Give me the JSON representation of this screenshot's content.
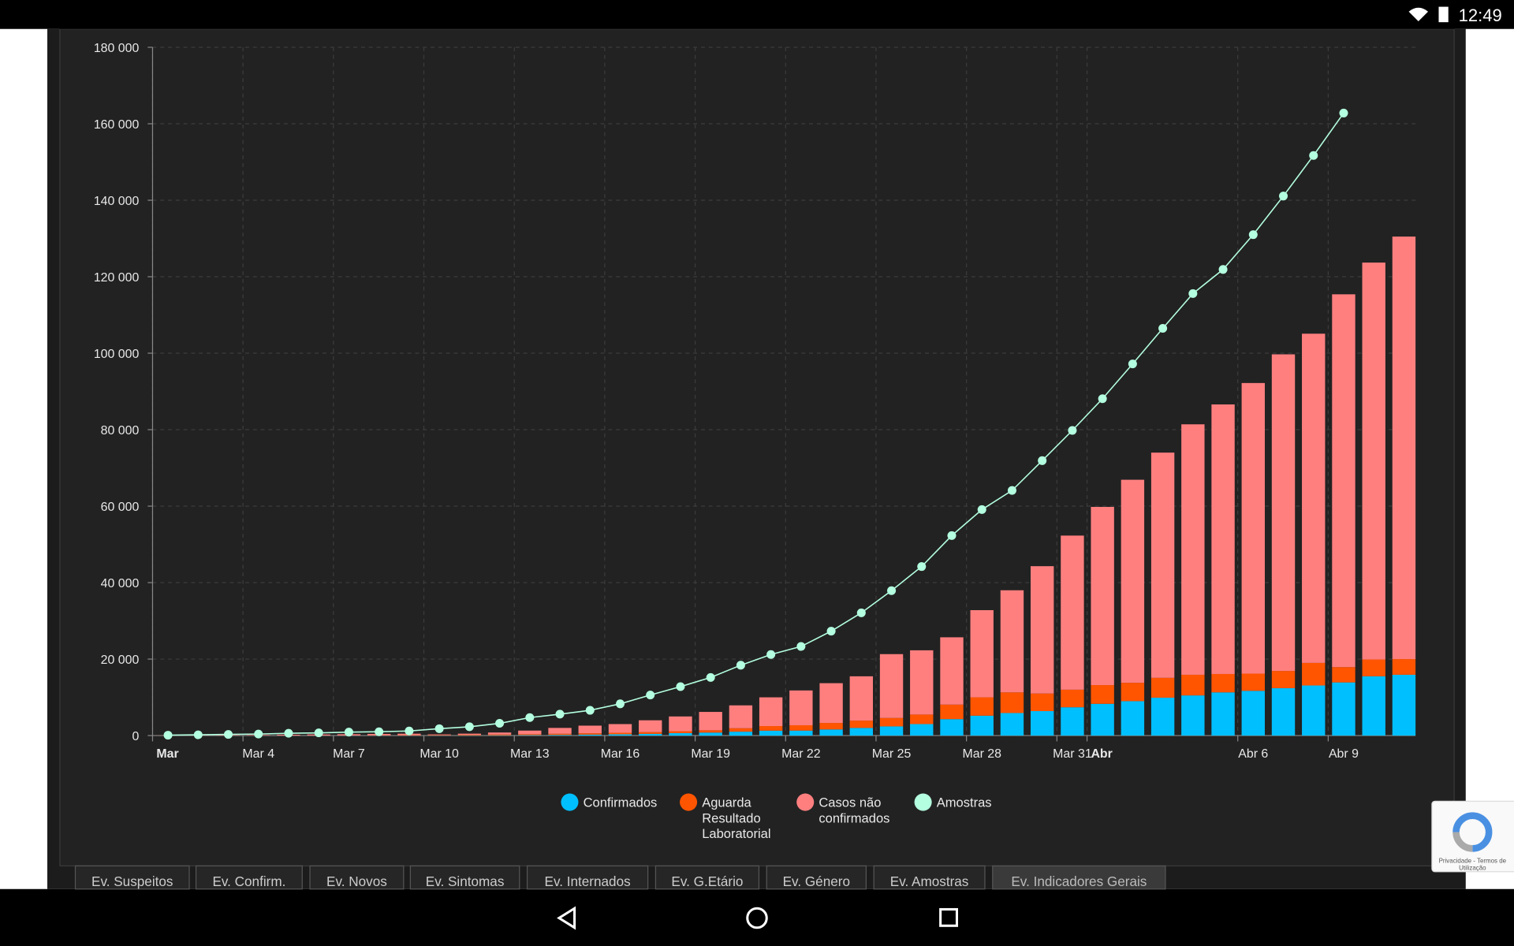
{
  "status_bar": {
    "time": "12:49"
  },
  "chart_data": {
    "type": "bar",
    "stacked": true,
    "categories": [
      "Mar",
      null,
      null,
      "Mar 4",
      null,
      null,
      "Mar 7",
      null,
      null,
      "Mar 10",
      null,
      null,
      "Mar 13",
      null,
      null,
      "Mar 16",
      null,
      null,
      "Mar 19",
      null,
      null,
      "Mar 22",
      null,
      null,
      "Mar 25",
      null,
      null,
      "Mar 28",
      null,
      null,
      "Mar 31",
      "Abr",
      null,
      null,
      null,
      null,
      "Abr 6",
      null,
      null,
      "Abr 9",
      null,
      null
    ],
    "series": [
      {
        "name": "Confirmados",
        "color": "#00bfff",
        "values": [
          0,
          0,
          2,
          4,
          5,
          8,
          13,
          21,
          30,
          41,
          59,
          78,
          112,
          169,
          245,
          331,
          448,
          642,
          785,
          1020,
          1280,
          1300,
          1600,
          2000,
          2400,
          3000,
          4300,
          5200,
          5900,
          6400,
          7400,
          8300,
          9000,
          9900,
          10500,
          11300,
          11700,
          12400,
          13100,
          13900,
          15500,
          15900
        ]
      },
      {
        "name": "Aguarda Resultado Laboratorial",
        "color": "#ff5500",
        "values": [
          0,
          0,
          5,
          10,
          20,
          30,
          40,
          60,
          80,
          100,
          150,
          200,
          250,
          300,
          350,
          400,
          450,
          500,
          600,
          900,
          1200,
          1400,
          1700,
          1900,
          2200,
          2500,
          3800,
          4800,
          5400,
          4600,
          4600,
          4900,
          4800,
          5200,
          5400,
          4800,
          4500,
          4500,
          5900,
          4000,
          4400,
          4100
        ]
      },
      {
        "name": "Casos não confirmados",
        "color": "#ff7f7f",
        "values": [
          30,
          60,
          90,
          120,
          200,
          250,
          300,
          350,
          380,
          160,
          290,
          520,
          940,
          1530,
          2000,
          2270,
          3100,
          3860,
          4800,
          5980,
          7520,
          9100,
          10400,
          11600,
          16700,
          16800,
          17600,
          22800,
          26700,
          33300,
          40300,
          46600,
          53100,
          58900,
          65500,
          70500,
          76000,
          82800,
          86100,
          97500,
          103800,
          110500
        ]
      },
      {
        "name": "Amostras",
        "color": "#b3ffe0",
        "type": "line",
        "values": [
          100,
          200,
          300,
          400,
          600,
          700,
          900,
          1000,
          1200,
          1800,
          2300,
          3200,
          4700,
          5600,
          6600,
          8300,
          10600,
          12800,
          15200,
          18400,
          21200,
          23300,
          27300,
          32100,
          37900,
          44200,
          52300,
          59100,
          64100,
          71900,
          79800,
          88100,
          97200,
          106500,
          115600,
          121900,
          131000,
          141100,
          151700,
          162800,
          null,
          null
        ]
      }
    ],
    "ylim": [
      0,
      180000
    ],
    "yticks": [
      0,
      {
        "value": 20000,
        "label": "20 000"
      },
      {
        "value": 40000,
        "label": "40 000"
      },
      {
        "value": 60000,
        "label": "60 000"
      },
      {
        "value": 80000,
        "label": "80 000"
      },
      {
        "value": 100000,
        "label": "100 000"
      },
      {
        "value": 120000,
        "label": "120 000"
      },
      {
        "value": 140000,
        "label": "140 000"
      },
      {
        "value": 160000,
        "label": "160 000"
      },
      {
        "value": 180000,
        "label": "180 000"
      }
    ],
    "grid": true,
    "legend": "bottom"
  },
  "tabs": [
    "Ev. Suspeitos",
    "Ev. Confirm.",
    "Ev. Novos",
    "Ev. Sintomas",
    "Ev. Internados",
    "Ev. G.Etário",
    "Ev. Género",
    "Ev. Amostras",
    "Ev. Indicadores Gerais"
  ],
  "active_tab": 8,
  "recaptcha": {
    "lines": [
      "Privacidade - Termos de",
      "Utilização"
    ]
  }
}
